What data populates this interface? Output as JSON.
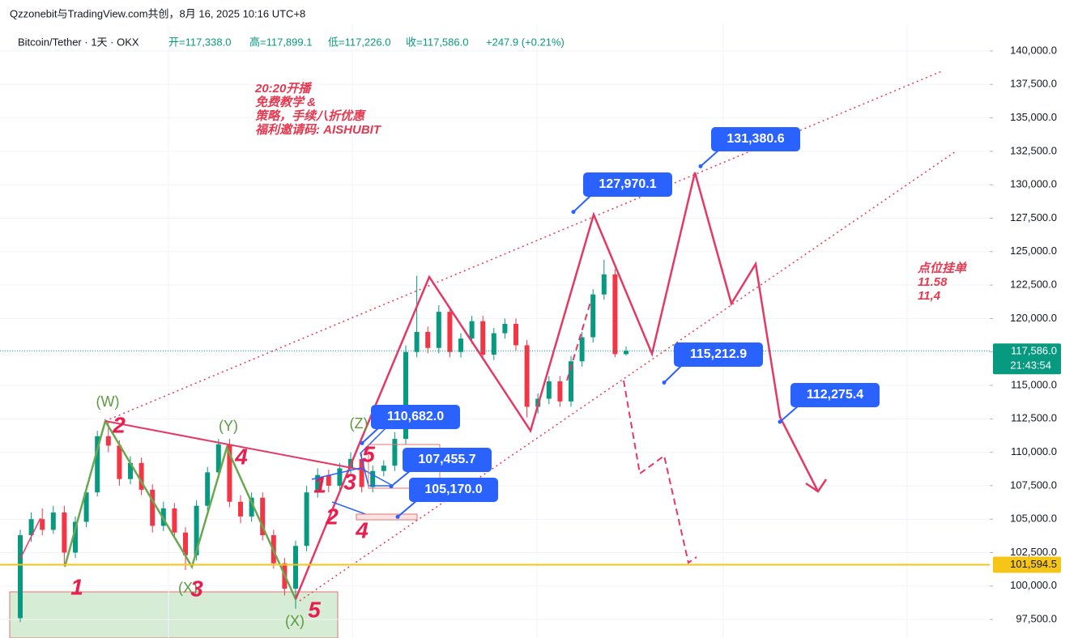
{
  "header": "Qzzonebit与TradingView.com共创，8月 16, 2025 10:16 UTC+8",
  "chart_data": {
    "type": "candlestick",
    "legend": {
      "symbol": "Bitcoin/Tether · 1天 · OKX",
      "open": "开=117,338.0",
      "high": "高=117,899.1",
      "low": "低=117,226.0",
      "close": "收=117,586.0",
      "change": "+247.9 (+0.21%)"
    },
    "open": [
      97600,
      103800,
      105000,
      104200,
      105500,
      102500,
      104800,
      107000,
      111200,
      110500,
      108000,
      109200,
      107200,
      104500,
      105800,
      104000,
      102300,
      106000,
      108500,
      110600,
      106300,
      105200,
      106600,
      103800,
      101700,
      99800,
      103000,
      107000,
      108300,
      107500,
      108800,
      109500,
      107400,
      108600,
      109000,
      111000,
      117500,
      119000,
      117800,
      120500,
      117500,
      118500,
      119800,
      117300,
      118900,
      119600,
      118000,
      113400,
      114000,
      115300,
      113800,
      116800,
      118600,
      121800,
      123300,
      117338
    ],
    "high": [
      104200,
      105500,
      105800,
      106000,
      106000,
      105200,
      107500,
      111600,
      112300,
      110900,
      109700,
      109600,
      107600,
      106300,
      106200,
      104400,
      106400,
      108900,
      111000,
      111000,
      106800,
      107000,
      107000,
      104200,
      102100,
      103400,
      107500,
      108800,
      108700,
      109200,
      110000,
      109900,
      109000,
      109400,
      111500,
      118000,
      123200,
      119400,
      121000,
      120900,
      118900,
      120200,
      120200,
      119300,
      120000,
      120000,
      118400,
      114400,
      115700,
      115700,
      117200,
      119000,
      122200,
      124400,
      123700,
      117899.1
    ],
    "low": [
      97300,
      103300,
      103800,
      103900,
      101500,
      102100,
      104400,
      106700,
      110000,
      107500,
      107600,
      106800,
      104000,
      104100,
      103600,
      101200,
      101900,
      105600,
      108100,
      105900,
      104700,
      104800,
      103400,
      101300,
      99300,
      98300,
      102600,
      106600,
      107000,
      107100,
      108400,
      107000,
      107000,
      108200,
      108600,
      110600,
      117100,
      117400,
      117400,
      117100,
      117100,
      118100,
      116900,
      116900,
      118500,
      117600,
      112600,
      112900,
      113600,
      113400,
      113400,
      116400,
      118200,
      121400,
      117100,
      117226
    ],
    "close": [
      103800,
      105000,
      104200,
      105500,
      102500,
      104800,
      107000,
      111200,
      110500,
      108000,
      109200,
      107200,
      104500,
      105800,
      104000,
      102300,
      106000,
      108500,
      110600,
      106300,
      105200,
      106600,
      103800,
      101700,
      99800,
      103000,
      107000,
      108300,
      107500,
      108800,
      109500,
      107400,
      108600,
      109000,
      111000,
      117500,
      119000,
      117800,
      120500,
      117500,
      118500,
      119800,
      117300,
      118900,
      119600,
      118000,
      113400,
      114000,
      115300,
      113800,
      116800,
      118600,
      121800,
      123300,
      117338,
      117586
    ],
    "up_color": "#089981",
    "down_color": "#f23645",
    "ylim": [
      96114,
      143814
    ],
    "yticks": [
      {
        "value": 97500,
        "label": "97,500.0"
      },
      {
        "value": 100000,
        "label": "100,000.0"
      },
      {
        "value": 102500,
        "label": "102,500.0"
      },
      {
        "value": 105000,
        "label": "105,000.0"
      },
      {
        "value": 107500,
        "label": "107,500.0"
      },
      {
        "value": 110000,
        "label": "110,000.0"
      },
      {
        "value": 112500,
        "label": "112,500.0"
      },
      {
        "value": 115000,
        "label": "115,000.0"
      },
      {
        "value": 117500,
        "label": "117,500.0"
      },
      {
        "value": 120000,
        "label": "120,000.0"
      },
      {
        "value": 122500,
        "label": "122,500.0"
      },
      {
        "value": 125000,
        "label": "125,000.0"
      },
      {
        "value": 127500,
        "label": "127,500.0"
      },
      {
        "value": 130000,
        "label": "130,000.0"
      },
      {
        "value": 132500,
        "label": "132,500.0"
      },
      {
        "value": 135000,
        "label": "135,000.0"
      },
      {
        "value": 137500,
        "label": "137,500.0"
      },
      {
        "value": 140000,
        "label": "140,000.0"
      }
    ],
    "grid": true,
    "last_price": {
      "value": 117586,
      "label": "117,586.0",
      "countdown": "21:43:54"
    },
    "level_line": {
      "value": 101594.5,
      "label": "101,594.5",
      "color": "#f5c518"
    },
    "price_labels": [
      {
        "value": 131380.6,
        "label": "131,380.6"
      },
      {
        "value": 127970.1,
        "label": "127,970.1"
      },
      {
        "value": 115212.9,
        "label": "115,212.9"
      },
      {
        "value": 112275.4,
        "label": "112,275.4"
      },
      {
        "value": 110682,
        "label": "110,682.0"
      },
      {
        "value": 107455.7,
        "label": "107,455.7"
      },
      {
        "value": 105170,
        "label": "105,170.0"
      }
    ],
    "notes": [
      "20:20开播",
      "免费教学 &",
      "策略，手续八折优惠",
      "福利邀请码: AISHUBIT"
    ],
    "side_notes": [
      "点位挂单",
      "11.58",
      "11,4"
    ],
    "wave_labels": [
      {
        "text": "(W)",
        "color": "#5b9a3d"
      },
      {
        "text": "(Y)",
        "color": "#5b9a3d"
      },
      {
        "text": "(Z)",
        "color": "#5b9a3d"
      },
      {
        "text": "(X)",
        "color": "#5b9a3d"
      },
      {
        "text": "(X)",
        "color": "#5b9a3d"
      },
      {
        "text": "2",
        "color": "#e91e4f"
      },
      {
        "text": "4",
        "color": "#e91e4f"
      },
      {
        "text": "1",
        "color": "#e91e4f"
      },
      {
        "text": "3",
        "color": "#e91e4f"
      },
      {
        "text": "5",
        "color": "#e91e4f"
      },
      {
        "text": "1",
        "color": "#e91e4f"
      },
      {
        "text": "2",
        "color": "#e91e4f"
      },
      {
        "text": "3",
        "color": "#e91e4f"
      },
      {
        "text": "4",
        "color": "#e91e4f"
      },
      {
        "text": "5",
        "color": "#e91e4f"
      }
    ]
  }
}
